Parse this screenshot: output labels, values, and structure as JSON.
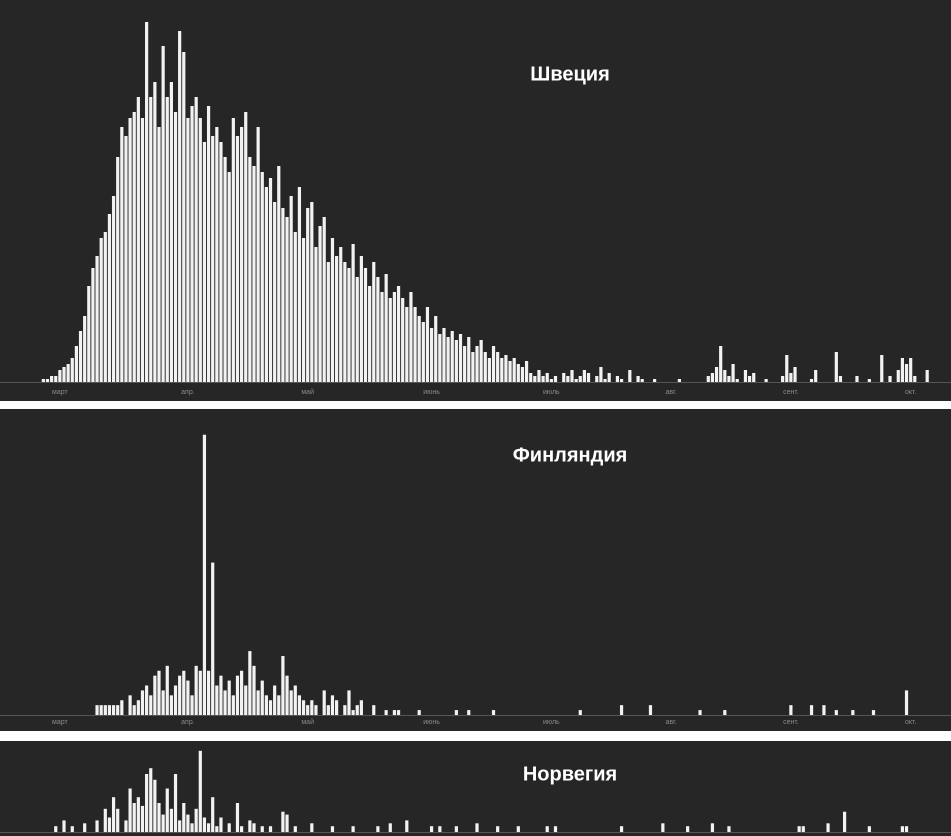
{
  "chart_data": [
    {
      "type": "bar",
      "title": "Швеция",
      "color": "#f2f2f2",
      "ylim": [
        0,
        125
      ],
      "categories": [
        null,
        null,
        null,
        null,
        null,
        null,
        null,
        null,
        null,
        null,
        null,
        null,
        null,
        null,
        "март",
        null,
        null,
        null,
        null,
        null,
        null,
        null,
        null,
        null,
        null,
        null,
        null,
        null,
        null,
        null,
        null,
        null,
        null,
        null,
        null,
        null,
        null,
        null,
        null,
        null,
        null,
        null,
        null,
        null,
        null,
        "апр.",
        null,
        null,
        null,
        null,
        null,
        null,
        null,
        null,
        null,
        null,
        null,
        null,
        null,
        null,
        null,
        null,
        null,
        null,
        null,
        null,
        null,
        null,
        null,
        null,
        null,
        null,
        null,
        null,
        "май",
        null,
        null,
        null,
        null,
        null,
        null,
        null,
        null,
        null,
        null,
        null,
        null,
        null,
        null,
        null,
        null,
        null,
        null,
        null,
        null,
        null,
        null,
        null,
        null,
        null,
        null,
        null,
        null,
        null,
        "июнь",
        null,
        null,
        null,
        null,
        null,
        null,
        null,
        null,
        null,
        null,
        null,
        null,
        null,
        null,
        null,
        null,
        null,
        null,
        null,
        null,
        null,
        null,
        null,
        null,
        null,
        null,
        null,
        null,
        "июль",
        null,
        null,
        null,
        null,
        null,
        null,
        null,
        null,
        null,
        null,
        null,
        null,
        null,
        null,
        null,
        null,
        null,
        null,
        null,
        null,
        null,
        null,
        null,
        null,
        null,
        null,
        null,
        null,
        "авг.",
        null,
        null,
        null,
        null,
        null,
        null,
        null,
        null,
        null,
        null,
        null,
        null,
        null,
        null,
        null,
        null,
        null,
        null,
        null,
        null,
        null,
        null,
        null,
        null,
        null,
        null,
        null,
        null,
        "сент.",
        null,
        null,
        null,
        null,
        null,
        null,
        null,
        null,
        null,
        null,
        null,
        null,
        null,
        null,
        null,
        null,
        null,
        null,
        null,
        null,
        null,
        null,
        null,
        null,
        null,
        null,
        null,
        null,
        "окт.",
        null,
        null,
        null,
        null
      ],
      "values": [
        0,
        0,
        0,
        0,
        0,
        0,
        0,
        0,
        0,
        0,
        1,
        1,
        2,
        2,
        4,
        5,
        6,
        8,
        12,
        17,
        22,
        32,
        38,
        42,
        48,
        50,
        56,
        62,
        75,
        85,
        82,
        88,
        90,
        95,
        88,
        120,
        95,
        100,
        85,
        112,
        95,
        100,
        90,
        117,
        110,
        88,
        92,
        95,
        88,
        80,
        92,
        82,
        85,
        80,
        75,
        70,
        88,
        82,
        85,
        90,
        75,
        72,
        85,
        70,
        65,
        68,
        60,
        72,
        58,
        55,
        62,
        50,
        65,
        48,
        58,
        60,
        45,
        52,
        55,
        40,
        48,
        42,
        45,
        40,
        38,
        46,
        35,
        42,
        38,
        32,
        40,
        35,
        30,
        36,
        28,
        30,
        32,
        28,
        25,
        30,
        25,
        22,
        20,
        25,
        18,
        22,
        16,
        18,
        15,
        17,
        14,
        16,
        12,
        15,
        10,
        12,
        14,
        10,
        8,
        12,
        10,
        8,
        9,
        7,
        8,
        6,
        5,
        7,
        3,
        2,
        4,
        2,
        3,
        1,
        2,
        0,
        3,
        2,
        4,
        1,
        2,
        4,
        3,
        0,
        2,
        5,
        1,
        3,
        0,
        2,
        1,
        0,
        4,
        0,
        2,
        1,
        0,
        0,
        1,
        0,
        0,
        0,
        0,
        0,
        1,
        0,
        0,
        0,
        0,
        0,
        0,
        2,
        3,
        5,
        12,
        4,
        2,
        6,
        1,
        0,
        4,
        2,
        3,
        0,
        0,
        1,
        0,
        0,
        0,
        2,
        9,
        3,
        5,
        0,
        0,
        0,
        1,
        4,
        0,
        0,
        0,
        0,
        10,
        2,
        0,
        0,
        0,
        2,
        0,
        0,
        1,
        0,
        0,
        9,
        0,
        2,
        0,
        4,
        8,
        6,
        8,
        2,
        0,
        0,
        4
      ]
    },
    {
      "type": "bar",
      "title": "Финляндия",
      "color": "#f2f2f2",
      "ylim": [
        0,
        60
      ],
      "categories": [
        null,
        null,
        null,
        null,
        null,
        null,
        null,
        null,
        null,
        null,
        null,
        null,
        null,
        null,
        "март",
        null,
        null,
        null,
        null,
        null,
        null,
        null,
        null,
        null,
        null,
        null,
        null,
        null,
        null,
        null,
        null,
        null,
        null,
        null,
        null,
        null,
        null,
        null,
        null,
        null,
        null,
        null,
        null,
        null,
        null,
        "апр.",
        null,
        null,
        null,
        null,
        null,
        null,
        null,
        null,
        null,
        null,
        null,
        null,
        null,
        null,
        null,
        null,
        null,
        null,
        null,
        null,
        null,
        null,
        null,
        null,
        null,
        null,
        null,
        null,
        "май",
        null,
        null,
        null,
        null,
        null,
        null,
        null,
        null,
        null,
        null,
        null,
        null,
        null,
        null,
        null,
        null,
        null,
        null,
        null,
        null,
        null,
        null,
        null,
        null,
        null,
        null,
        null,
        null,
        null,
        "июнь",
        null,
        null,
        null,
        null,
        null,
        null,
        null,
        null,
        null,
        null,
        null,
        null,
        null,
        null,
        null,
        null,
        null,
        null,
        null,
        null,
        null,
        null,
        null,
        null,
        null,
        null,
        null,
        null,
        "июль",
        null,
        null,
        null,
        null,
        null,
        null,
        null,
        null,
        null,
        null,
        null,
        null,
        null,
        null,
        null,
        null,
        null,
        null,
        null,
        null,
        null,
        null,
        null,
        null,
        null,
        null,
        null,
        null,
        "авг.",
        null,
        null,
        null,
        null,
        null,
        null,
        null,
        null,
        null,
        null,
        null,
        null,
        null,
        null,
        null,
        null,
        null,
        null,
        null,
        null,
        null,
        null,
        null,
        null,
        null,
        null,
        null,
        null,
        "сент.",
        null,
        null,
        null,
        null,
        null,
        null,
        null,
        null,
        null,
        null,
        null,
        null,
        null,
        null,
        null,
        null,
        null,
        null,
        null,
        null,
        null,
        null,
        null,
        null,
        null,
        null,
        null,
        null,
        "окт.",
        null,
        null,
        null,
        null
      ],
      "values": [
        0,
        0,
        0,
        0,
        0,
        0,
        0,
        0,
        0,
        0,
        0,
        0,
        0,
        0,
        0,
        0,
        0,
        0,
        0,
        0,
        0,
        0,
        0,
        2,
        2,
        2,
        2,
        2,
        2,
        3,
        0,
        4,
        2,
        3,
        5,
        6,
        4,
        8,
        9,
        5,
        10,
        4,
        6,
        8,
        9,
        7,
        4,
        10,
        9,
        57,
        9,
        31,
        6,
        8,
        5,
        7,
        4,
        8,
        9,
        6,
        13,
        10,
        5,
        7,
        4,
        3,
        6,
        4,
        12,
        8,
        5,
        6,
        4,
        3,
        2,
        3,
        2,
        0,
        5,
        2,
        4,
        3,
        0,
        2,
        5,
        1,
        2,
        3,
        0,
        0,
        2,
        0,
        0,
        1,
        0,
        1,
        1,
        0,
        0,
        0,
        0,
        1,
        0,
        0,
        0,
        0,
        0,
        0,
        0,
        0,
        1,
        0,
        0,
        1,
        0,
        0,
        0,
        0,
        0,
        1,
        0,
        0,
        0,
        0,
        0,
        0,
        0,
        0,
        0,
        0,
        0,
        0,
        0,
        0,
        0,
        0,
        0,
        0,
        0,
        0,
        1,
        0,
        0,
        0,
        0,
        0,
        0,
        0,
        0,
        0,
        2,
        0,
        0,
        0,
        0,
        0,
        0,
        2,
        0,
        0,
        0,
        0,
        0,
        0,
        0,
        0,
        0,
        0,
        0,
        1,
        0,
        0,
        0,
        0,
        0,
        1,
        0,
        0,
        0,
        0,
        0,
        0,
        0,
        0,
        0,
        0,
        0,
        0,
        0,
        0,
        0,
        2,
        0,
        0,
        0,
        0,
        2,
        0,
        0,
        2,
        0,
        0,
        1,
        0,
        0,
        0,
        1,
        0,
        0,
        0,
        0,
        1,
        0,
        0,
        0,
        0,
        0,
        0,
        0,
        5,
        0,
        0,
        0,
        0,
        0
      ]
    },
    {
      "type": "bar",
      "title": "Норвегия",
      "color": "#f2f2f2",
      "ylim": [
        0,
        30
      ],
      "categories": [
        null,
        null,
        null,
        null,
        null,
        null,
        null,
        null,
        null,
        null,
        null,
        null,
        null,
        null,
        null,
        null,
        null,
        null,
        null,
        null,
        null,
        null,
        null,
        null,
        null,
        null,
        null,
        null,
        null,
        null,
        null,
        null,
        null,
        null,
        null,
        null,
        null,
        null,
        null,
        null,
        null,
        null,
        null,
        null,
        null,
        null,
        null,
        null,
        null,
        null,
        null,
        null,
        null,
        null,
        null,
        null,
        null,
        null,
        null,
        null,
        null,
        null,
        null,
        null,
        null,
        null,
        null,
        null,
        null,
        null,
        null,
        null,
        null,
        null,
        null,
        null,
        null,
        null,
        null,
        null,
        null,
        null,
        null,
        null,
        null,
        null,
        null,
        null,
        null,
        null,
        null,
        null,
        null,
        null,
        null,
        null,
        null,
        null,
        null,
        null,
        null,
        null,
        null,
        null,
        null,
        null,
        null,
        null,
        null,
        null,
        null,
        null,
        null,
        null,
        null,
        null,
        null,
        null,
        null,
        null,
        null,
        null,
        null,
        null,
        null,
        null,
        null,
        null,
        null,
        null,
        null,
        null,
        null,
        null,
        null,
        null,
        null,
        null,
        null,
        null,
        null,
        null,
        null,
        null,
        null,
        null,
        null,
        null,
        null,
        null,
        null,
        null,
        null,
        null,
        null,
        null,
        null,
        null,
        null,
        null,
        null,
        null,
        null,
        null,
        null,
        null,
        null,
        null,
        null,
        null,
        null,
        null,
        null,
        null,
        null,
        null,
        null,
        null,
        null,
        null,
        null,
        null,
        null,
        null,
        null,
        null,
        null,
        null,
        null,
        null,
        null,
        null,
        null,
        null,
        null,
        null,
        null,
        null,
        null,
        null,
        null,
        null,
        null,
        null,
        null,
        null,
        null,
        null,
        null,
        null,
        null,
        null,
        null,
        null,
        null,
        null,
        null,
        null,
        null,
        null,
        null,
        null,
        null,
        null,
        null
      ],
      "values": [
        0,
        0,
        0,
        0,
        0,
        0,
        0,
        0,
        0,
        0,
        0,
        0,
        0,
        2,
        0,
        4,
        0,
        2,
        0,
        0,
        3,
        0,
        0,
        4,
        0,
        8,
        5,
        12,
        8,
        0,
        4,
        15,
        10,
        12,
        9,
        20,
        22,
        18,
        10,
        6,
        15,
        8,
        20,
        4,
        10,
        6,
        3,
        8,
        28,
        5,
        3,
        12,
        2,
        5,
        0,
        3,
        0,
        10,
        2,
        0,
        4,
        3,
        0,
        2,
        0,
        2,
        0,
        0,
        7,
        6,
        0,
        2,
        0,
        0,
        0,
        3,
        0,
        0,
        0,
        0,
        2,
        0,
        0,
        0,
        0,
        2,
        0,
        0,
        0,
        0,
        0,
        2,
        0,
        0,
        3,
        0,
        0,
        0,
        4,
        0,
        0,
        0,
        0,
        0,
        2,
        0,
        2,
        0,
        0,
        0,
        2,
        0,
        0,
        0,
        0,
        3,
        0,
        0,
        0,
        0,
        2,
        0,
        0,
        0,
        0,
        2,
        0,
        0,
        0,
        0,
        0,
        0,
        2,
        0,
        2,
        0,
        0,
        0,
        0,
        0,
        0,
        0,
        0,
        0,
        0,
        0,
        0,
        0,
        0,
        0,
        2,
        0,
        0,
        0,
        0,
        0,
        0,
        0,
        0,
        0,
        3,
        0,
        0,
        0,
        0,
        0,
        2,
        0,
        0,
        0,
        0,
        0,
        3,
        0,
        0,
        0,
        2,
        0,
        0,
        0,
        0,
        0,
        0,
        0,
        0,
        0,
        0,
        0,
        0,
        0,
        0,
        0,
        0,
        2,
        2,
        0,
        0,
        0,
        0,
        0,
        3,
        0,
        0,
        0,
        7,
        0,
        0,
        0,
        0,
        0,
        2,
        0,
        0,
        0,
        0,
        0,
        0,
        0,
        2,
        2,
        0,
        0,
        0,
        0,
        0
      ]
    }
  ]
}
